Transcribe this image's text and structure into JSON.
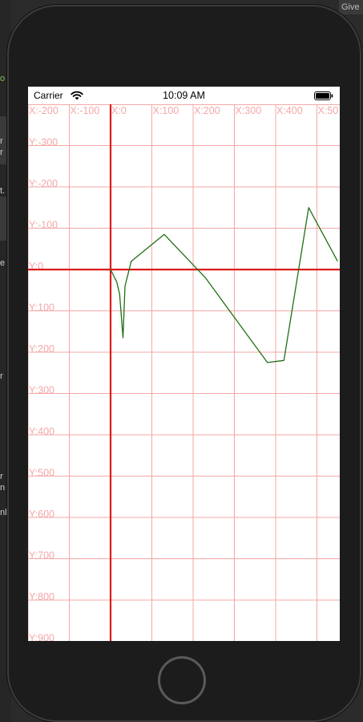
{
  "background_ide": {
    "top_right_text": "Give",
    "left_letters": [
      "o",
      "r",
      "r",
      "t.",
      "e",
      "r",
      "r",
      "n",
      "nl"
    ]
  },
  "status_bar": {
    "carrier": "Carrier",
    "time": "10:09 AM",
    "icons": [
      "wifi-icon",
      "battery-icon"
    ]
  },
  "grid": {
    "x_labels": [
      "X:-200",
      "X:-100",
      "X:0",
      "X:100",
      "X:200",
      "X:300",
      "X:400",
      "X:50"
    ],
    "y_labels": [
      "Y:-300",
      "Y:-200",
      "Y:-100",
      "Y:0",
      "Y:100",
      "Y:200",
      "Y:300",
      "Y:400",
      "Y:500",
      "Y:600",
      "Y:700",
      "Y:800",
      "Y:900"
    ],
    "line_color": "#f4a7a7",
    "label_color": "#f4a7a7",
    "axis_color": "#dd1b1b"
  },
  "chart_data": {
    "type": "line",
    "x_range": [
      -200,
      550
    ],
    "y_range": [
      -400,
      900
    ],
    "series": [
      {
        "color": "#1f6f13",
        "points": [
          [
            0,
            0
          ],
          [
            15,
            30
          ],
          [
            22,
            60
          ],
          [
            30,
            165
          ],
          [
            35,
            40
          ],
          [
            50,
            -20
          ],
          [
            130,
            -85
          ],
          [
            230,
            20
          ],
          [
            380,
            225
          ],
          [
            420,
            220
          ],
          [
            480,
            -150
          ],
          [
            550,
            -20
          ]
        ]
      }
    ]
  },
  "colors": {
    "phone_body": "#1c1c1c",
    "screen_bg": "#ffffff",
    "curve": "#1f6f13"
  }
}
